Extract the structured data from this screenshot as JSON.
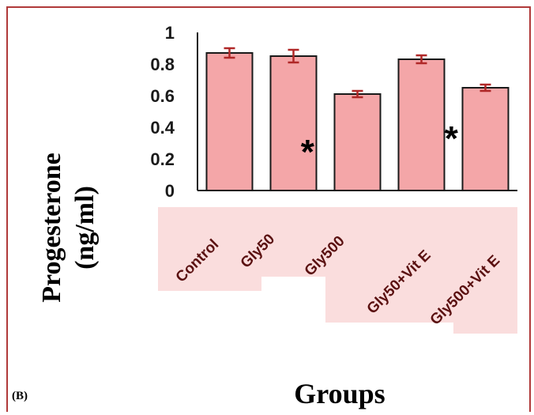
{
  "panel_label": "(B)",
  "chart_data": {
    "type": "bar",
    "categories": [
      "Control",
      "Gly50",
      "Gly500",
      "Gly50+Vit E",
      "Gly500+Vit E"
    ],
    "values": [
      0.87,
      0.85,
      0.61,
      0.83,
      0.65
    ],
    "errors": [
      0.03,
      0.04,
      0.02,
      0.025,
      0.02
    ],
    "significance": [
      "",
      "",
      "*",
      "",
      "*"
    ],
    "ylim": [
      0,
      1
    ],
    "yticks": [
      "0",
      "0.2",
      "0.4",
      "0.6",
      "0.8",
      "1"
    ],
    "ylabel_line1": "Progesterone",
    "ylabel_line2": "(ng/ml)",
    "xlabel": "Groups",
    "colors": {
      "bar_fill": "#f4a6a8",
      "bar_edge": "#1a1a1a",
      "error_bar": "#b02828",
      "label_bg": "#f8d2d2"
    }
  }
}
